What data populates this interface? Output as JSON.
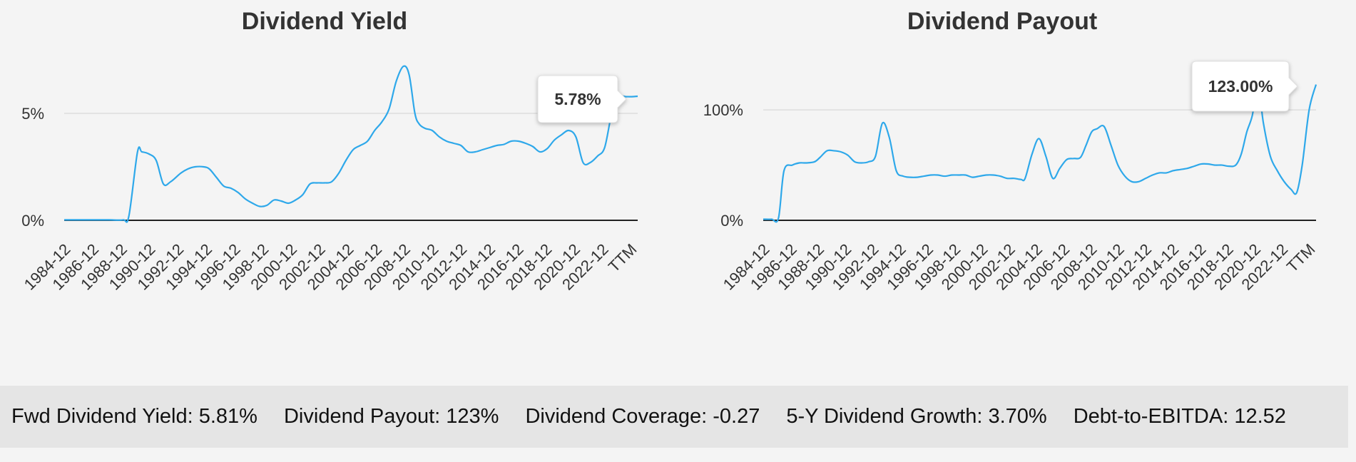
{
  "chart_data": [
    {
      "type": "line",
      "title": "Dividend Yield",
      "y_ticks": [
        {
          "value": 0,
          "label": "0%"
        },
        {
          "value": 5,
          "label": "5%"
        }
      ],
      "ylim": [
        0,
        8
      ],
      "x_tick_labels": [
        "1984-12",
        "1986-12",
        "1988-12",
        "1990-12",
        "1992-12",
        "1994-12",
        "1996-12",
        "1998-12",
        "2000-12",
        "2002-12",
        "2004-12",
        "2006-12",
        "2008-12",
        "2010-12",
        "2012-12",
        "2014-12",
        "2016-12",
        "2018-12",
        "2020-12",
        "2022-12",
        "TTM"
      ],
      "x": [
        1984.9,
        1986,
        1987,
        1988,
        1989,
        1989.4,
        1990,
        1990.3,
        1990.8,
        1991.3,
        1991.8,
        1992.3,
        1993,
        1993.5,
        1994,
        1994.6,
        1995,
        1995.5,
        1996,
        1996.5,
        1997,
        1997.5,
        1998,
        1998.5,
        1999,
        1999.5,
        2000,
        2000.5,
        2001,
        2001.5,
        2002,
        2002.5,
        2003,
        2003.5,
        2004,
        2004.5,
        2005,
        2005.5,
        2006,
        2006.5,
        2007,
        2007.5,
        2008,
        2008.5,
        2008.9,
        2009.3,
        2009.6,
        2010,
        2010.5,
        2011,
        2011.5,
        2012,
        2012.5,
        2013,
        2013.5,
        2014,
        2014.5,
        2015,
        2015.5,
        2016,
        2016.5,
        2017,
        2017.5,
        2018,
        2018.5,
        2019,
        2019.5,
        2020,
        2020.5,
        2021,
        2021.5,
        2022,
        2022.5,
        2023,
        2023.5,
        2024,
        2024.4,
        2024.8
      ],
      "values": [
        0.02,
        0.02,
        0.02,
        0.02,
        0.02,
        0.2,
        3.2,
        3.2,
        3.1,
        2.8,
        1.7,
        1.8,
        2.2,
        2.4,
        2.5,
        2.5,
        2.4,
        2.0,
        1.6,
        1.5,
        1.3,
        1.0,
        0.8,
        0.65,
        0.7,
        0.95,
        0.9,
        0.8,
        0.95,
        1.2,
        1.7,
        1.75,
        1.75,
        1.8,
        2.2,
        2.8,
        3.3,
        3.5,
        3.7,
        4.2,
        4.6,
        5.2,
        6.5,
        7.2,
        6.8,
        5.0,
        4.5,
        4.3,
        4.2,
        3.9,
        3.7,
        3.6,
        3.5,
        3.2,
        3.2,
        3.3,
        3.4,
        3.5,
        3.55,
        3.7,
        3.7,
        3.6,
        3.45,
        3.2,
        3.35,
        3.75,
        4.0,
        4.2,
        3.9,
        2.7,
        2.7,
        3.0,
        3.4,
        5.0,
        5.75,
        5.78,
        5.78,
        5.8
      ],
      "tooltip": "5.78%"
    },
    {
      "type": "line",
      "title": "Dividend Payout",
      "y_ticks": [
        {
          "value": 0,
          "label": "0%"
        },
        {
          "value": 100,
          "label": "100%"
        }
      ],
      "ylim": [
        0,
        155
      ],
      "x_tick_labels": [
        "1984-12",
        "1986-12",
        "1988-12",
        "1990-12",
        "1992-12",
        "1994-12",
        "1996-12",
        "1998-12",
        "2000-12",
        "2002-12",
        "2004-12",
        "2006-12",
        "2008-12",
        "2010-12",
        "2012-12",
        "2014-12",
        "2016-12",
        "2018-12",
        "2020-12",
        "2022-12",
        "TTM"
      ],
      "x": [
        1984.9,
        1985.5,
        1986,
        1986.4,
        1987,
        1987.5,
        1988,
        1988.6,
        1989,
        1989.5,
        1990,
        1990.5,
        1991,
        1991.5,
        1992,
        1992.5,
        1993,
        1993.5,
        1994,
        1994.5,
        1995,
        1995.5,
        1996,
        1996.5,
        1997,
        1997.5,
        1998,
        1998.5,
        1999,
        1999.5,
        2000,
        2000.5,
        2001,
        2001.5,
        2002,
        2002.5,
        2003,
        2003.5,
        2003.8,
        2004.3,
        2004.8,
        2005.3,
        2005.8,
        2006.3,
        2006.8,
        2007.3,
        2007.8,
        2008.2,
        2008.6,
        2009,
        2009.5,
        2010,
        2010.5,
        2011,
        2011.5,
        2012,
        2012.5,
        2013,
        2013.5,
        2014,
        2014.5,
        2015,
        2015.5,
        2016,
        2016.5,
        2017,
        2017.5,
        2018,
        2018.5,
        2019,
        2019.4,
        2019.8,
        2020.2,
        2020.6,
        2021,
        2021.5,
        2022,
        2022.5,
        2023,
        2023.4,
        2023.8,
        2024.3,
        2024.8
      ],
      "values": [
        1,
        1,
        2,
        45,
        50,
        52,
        52,
        53,
        57,
        63,
        63,
        62,
        59,
        53,
        52,
        53,
        58,
        88,
        75,
        45,
        40,
        39,
        39,
        40,
        41,
        41,
        40,
        41,
        41,
        41,
        39,
        40,
        41,
        41,
        40,
        38,
        38,
        37,
        38,
        60,
        74,
        58,
        38,
        47,
        55,
        56,
        57,
        68,
        80,
        83,
        85,
        68,
        50,
        40,
        35,
        35,
        38,
        41,
        43,
        43,
        45,
        46,
        47,
        49,
        51,
        51,
        50,
        50,
        49,
        50,
        60,
        80,
        95,
        123,
        88,
        58,
        45,
        35,
        28,
        25,
        50,
        100,
        123
      ],
      "tooltip": "123.00%"
    }
  ],
  "stats_bar": {
    "fwd_yield": "Fwd Dividend Yield: 5.81%",
    "payout": "Dividend Payout: 123%",
    "coverage": "Dividend Coverage: -0.27",
    "growth": "5-Y Dividend Growth: 3.70%",
    "debt": "Debt-to-EBITDA: 12.52"
  },
  "colors": {
    "line": "#2ea8ea",
    "axis": "#222222",
    "grid": "#dddddd",
    "background": "#f4f4f4",
    "stats_bar_bg": "#e5e5e5"
  }
}
